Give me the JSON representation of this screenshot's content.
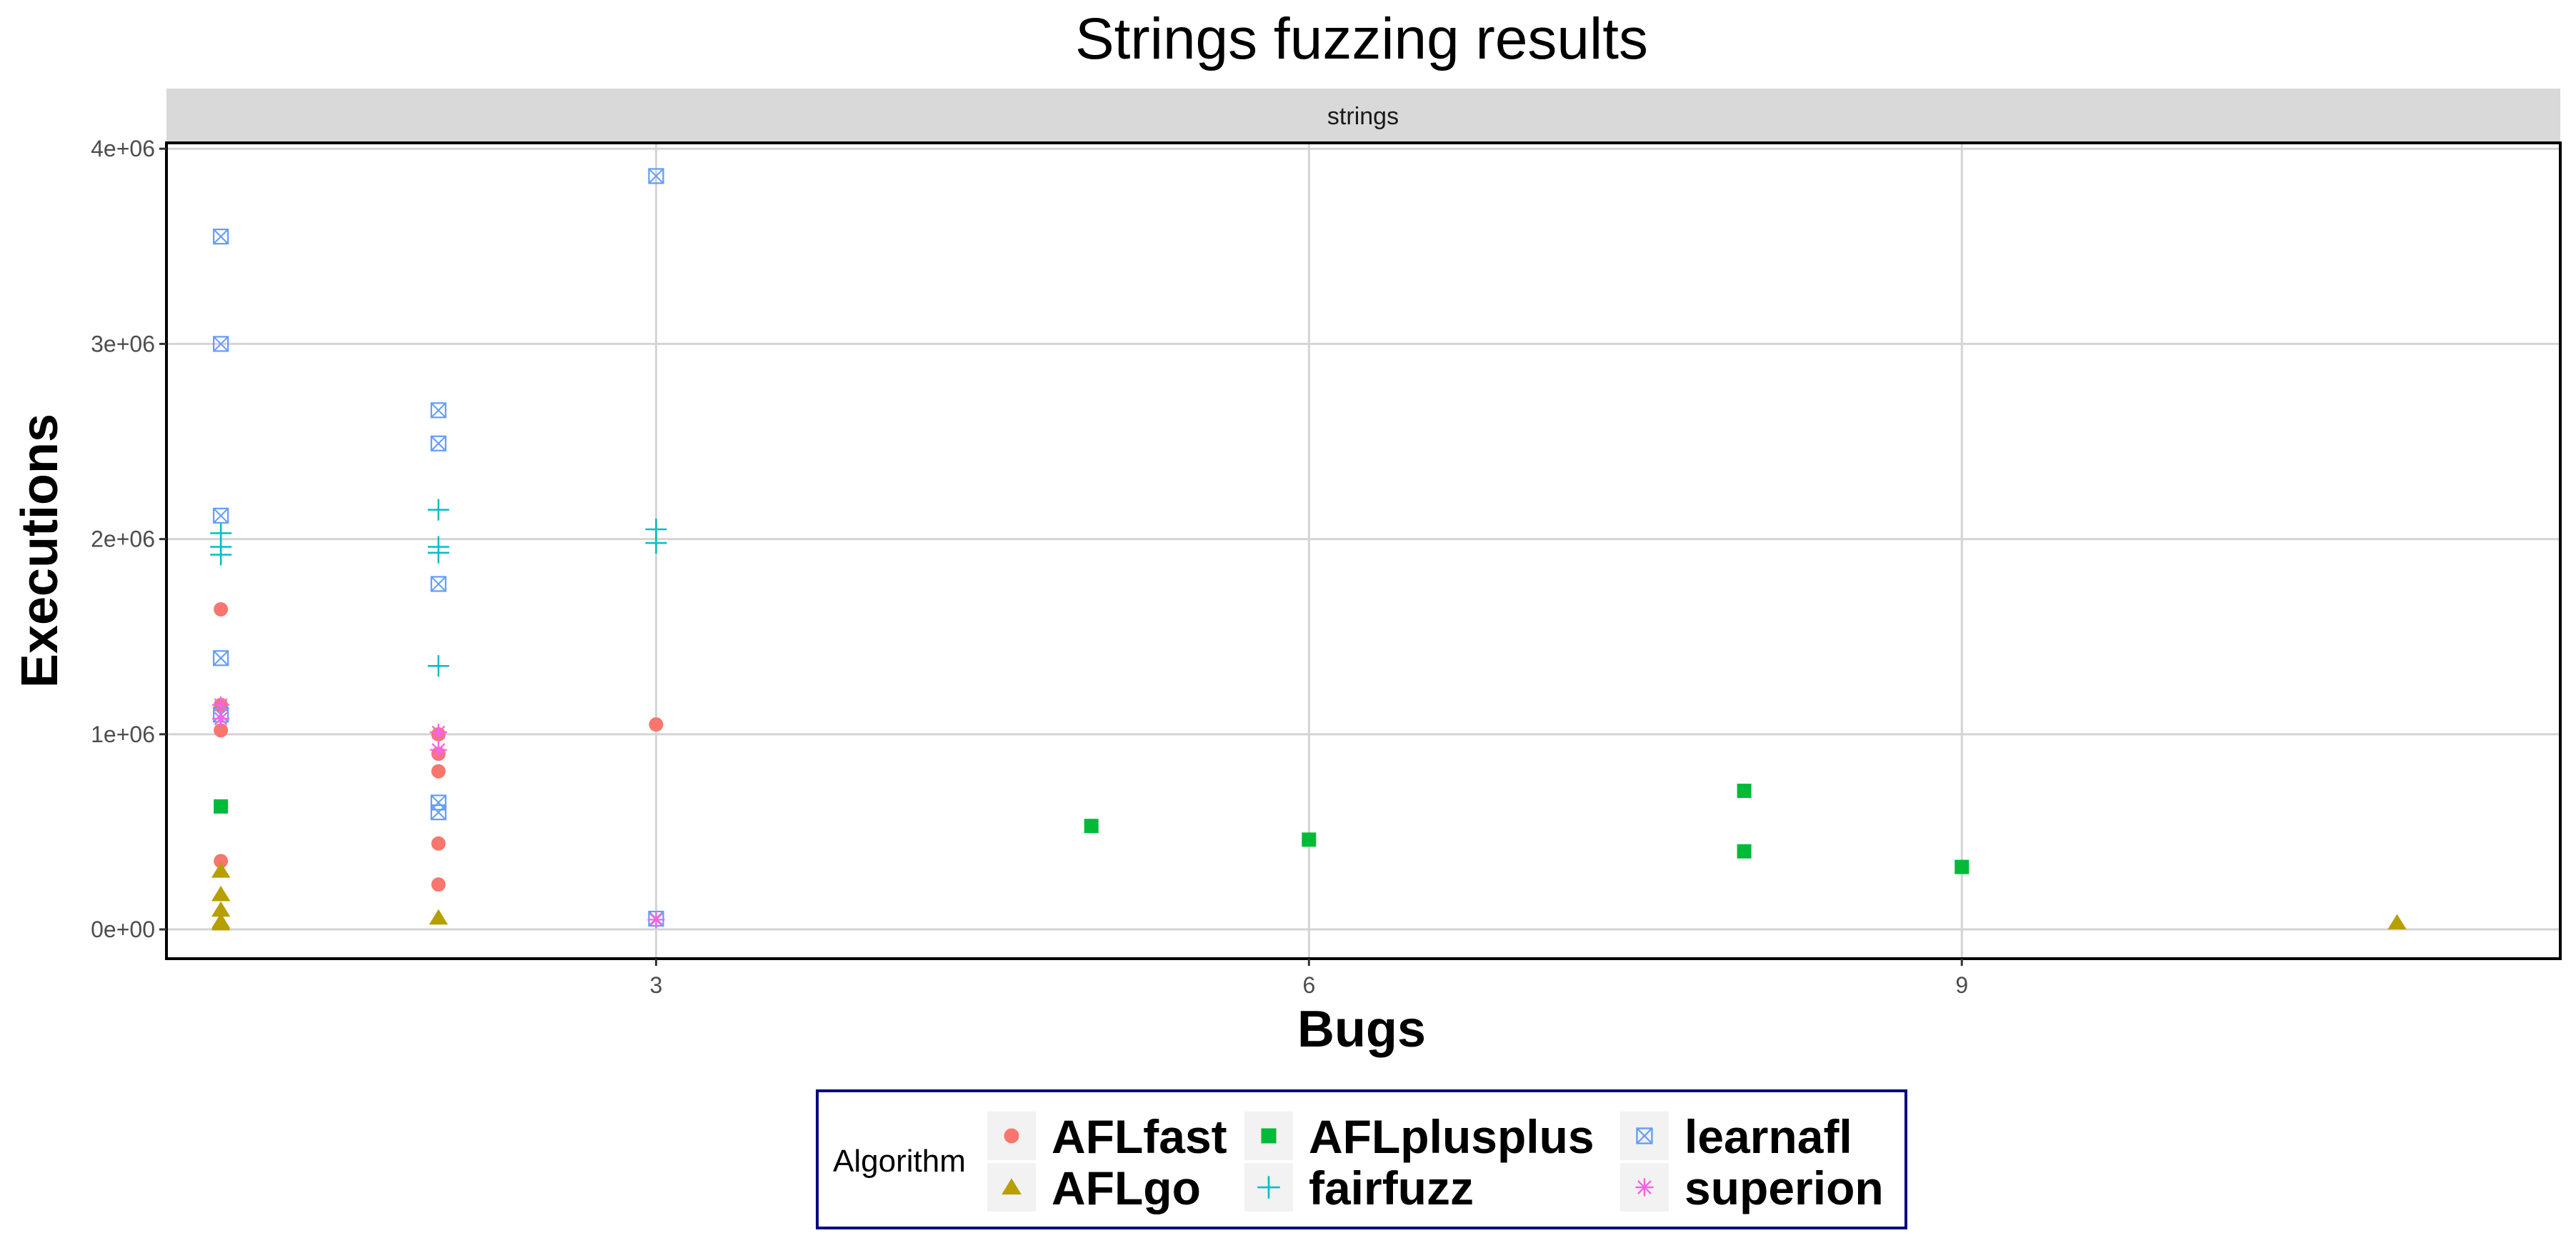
{
  "chart_data": {
    "type": "scatter",
    "title": "Strings fuzzing results",
    "facet_label": "strings",
    "xlabel": "Bugs",
    "ylabel": "Executions",
    "xlim": [
      0.75,
      11.75
    ],
    "ylim": [
      -150000,
      4030000
    ],
    "x_ticks": [
      3,
      6,
      9
    ],
    "x_tick_labels": [
      "3",
      "6",
      "9"
    ],
    "y_ticks": [
      0,
      1000000,
      2000000,
      3000000,
      4000000
    ],
    "y_tick_labels": [
      "0e+00",
      "1e+06",
      "2e+06",
      "3e+06",
      "4e+06"
    ],
    "grid": true,
    "legend_position": "bottom",
    "legend_title": "Algorithm",
    "series": [
      {
        "name": "AFLfast",
        "color": "#F8766D",
        "shape": "circle",
        "x": [
          1,
          1,
          1,
          1,
          2,
          2,
          2,
          2,
          2,
          3
        ],
        "y": [
          1640000,
          1150000,
          1020000,
          350000,
          1000000,
          900000,
          810000,
          440000,
          230000,
          1050000
        ]
      },
      {
        "name": "AFLgo",
        "color": "#B79F00",
        "shape": "triangle",
        "x": [
          1,
          1,
          1,
          1,
          1,
          2,
          11
        ],
        "y": [
          300000,
          180000,
          100000,
          40000,
          30000,
          60000,
          35000
        ]
      },
      {
        "name": "AFLplusplus",
        "color": "#00BA38",
        "shape": "square",
        "x": [
          1,
          5,
          6,
          8,
          8,
          9
        ],
        "y": [
          630000,
          530000,
          460000,
          710000,
          400000,
          320000
        ]
      },
      {
        "name": "fairfuzz",
        "color": "#00BFC4",
        "shape": "plus",
        "x": [
          1,
          1,
          1,
          2,
          2,
          2,
          2,
          3,
          3
        ],
        "y": [
          2030000,
          1960000,
          1920000,
          2150000,
          1960000,
          1930000,
          1350000,
          2050000,
          1980000
        ]
      },
      {
        "name": "learnafl",
        "color": "#619CFF",
        "shape": "boxcross",
        "x": [
          1,
          1,
          1,
          1,
          1,
          2,
          2,
          2,
          2,
          2,
          3,
          3
        ],
        "y": [
          3550000,
          3000000,
          2120000,
          1390000,
          1100000,
          2660000,
          2490000,
          1770000,
          650000,
          600000,
          3860000,
          55000
        ]
      },
      {
        "name": "superion",
        "color": "#F564E3",
        "shape": "asterisk",
        "x": [
          1,
          1,
          2,
          2,
          3
        ],
        "y": [
          1150000,
          1080000,
          1010000,
          920000,
          50000
        ]
      }
    ]
  }
}
